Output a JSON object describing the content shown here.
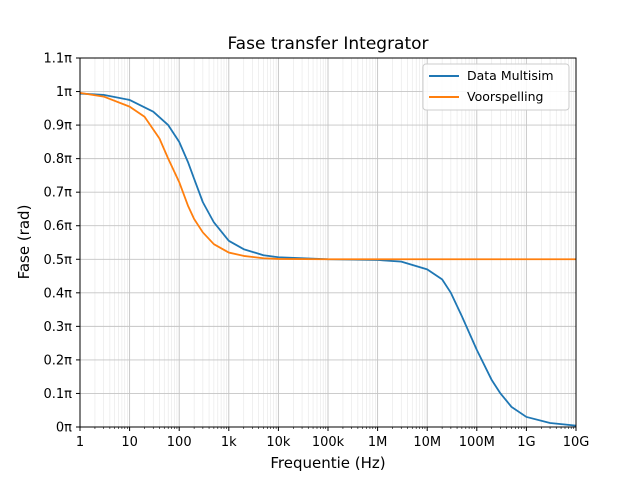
{
  "chart_data": {
    "type": "line",
    "title": "Fase transfer Integrator",
    "xlabel": "Frequentie (Hz)",
    "ylabel": "Fase (rad)",
    "x_scale": "log",
    "xlim": [
      1,
      10000000000
    ],
    "ylim_pi": [
      0,
      1.1
    ],
    "x_ticks": [
      1,
      10,
      100,
      1000,
      10000,
      100000,
      1000000,
      10000000,
      100000000,
      1000000000,
      10000000000
    ],
    "x_tick_labels": [
      "1",
      "10",
      "100",
      "1k",
      "10k",
      "100k",
      "1M",
      "10M",
      "100M",
      "1G",
      "10G"
    ],
    "y_ticks_pi": [
      0,
      0.1,
      0.2,
      0.3,
      0.4,
      0.5,
      0.6,
      0.7,
      0.8,
      0.9,
      1.0,
      1.1
    ],
    "y_tick_labels": [
      "0π",
      "0.1π",
      "0.2π",
      "0.3π",
      "0.4π",
      "0.5π",
      "0.6π",
      "0.7π",
      "0.8π",
      "0.9π",
      "1π",
      "1.1π"
    ],
    "grid": "major and minor",
    "legend_position": "top-right",
    "series": [
      {
        "name": "Data Multisim",
        "color": "#1f77b4",
        "points": [
          {
            "x": 1,
            "y_pi": 0.994
          },
          {
            "x": 3,
            "y_pi": 0.99
          },
          {
            "x": 10,
            "y_pi": 0.975
          },
          {
            "x": 30,
            "y_pi": 0.94
          },
          {
            "x": 60,
            "y_pi": 0.9
          },
          {
            "x": 100,
            "y_pi": 0.85
          },
          {
            "x": 150,
            "y_pi": 0.79
          },
          {
            "x": 200,
            "y_pi": 0.74
          },
          {
            "x": 300,
            "y_pi": 0.67
          },
          {
            "x": 500,
            "y_pi": 0.61
          },
          {
            "x": 1000,
            "y_pi": 0.555
          },
          {
            "x": 2000,
            "y_pi": 0.53
          },
          {
            "x": 5000,
            "y_pi": 0.512
          },
          {
            "x": 10000,
            "y_pi": 0.506
          },
          {
            "x": 100000,
            "y_pi": 0.5
          },
          {
            "x": 1000000,
            "y_pi": 0.498
          },
          {
            "x": 3000000,
            "y_pi": 0.493
          },
          {
            "x": 10000000,
            "y_pi": 0.47
          },
          {
            "x": 20000000,
            "y_pi": 0.44
          },
          {
            "x": 30000000,
            "y_pi": 0.4
          },
          {
            "x": 50000000,
            "y_pi": 0.33
          },
          {
            "x": 100000000,
            "y_pi": 0.23
          },
          {
            "x": 200000000,
            "y_pi": 0.14
          },
          {
            "x": 300000000,
            "y_pi": 0.1
          },
          {
            "x": 500000000,
            "y_pi": 0.06
          },
          {
            "x": 1000000000,
            "y_pi": 0.03
          },
          {
            "x": 3000000000,
            "y_pi": 0.012
          },
          {
            "x": 10000000000,
            "y_pi": 0.004
          }
        ]
      },
      {
        "name": "Voorspelling",
        "color": "#ff7f0e",
        "points": [
          {
            "x": 1,
            "y_pi": 0.996
          },
          {
            "x": 3,
            "y_pi": 0.985
          },
          {
            "x": 10,
            "y_pi": 0.955
          },
          {
            "x": 20,
            "y_pi": 0.925
          },
          {
            "x": 40,
            "y_pi": 0.86
          },
          {
            "x": 60,
            "y_pi": 0.8
          },
          {
            "x": 100,
            "y_pi": 0.73
          },
          {
            "x": 150,
            "y_pi": 0.66
          },
          {
            "x": 200,
            "y_pi": 0.62
          },
          {
            "x": 300,
            "y_pi": 0.58
          },
          {
            "x": 500,
            "y_pi": 0.545
          },
          {
            "x": 1000,
            "y_pi": 0.52
          },
          {
            "x": 2000,
            "y_pi": 0.51
          },
          {
            "x": 5000,
            "y_pi": 0.503
          },
          {
            "x": 10000,
            "y_pi": 0.501
          },
          {
            "x": 100000,
            "y_pi": 0.5
          },
          {
            "x": 10000000000,
            "y_pi": 0.5
          }
        ]
      }
    ]
  }
}
